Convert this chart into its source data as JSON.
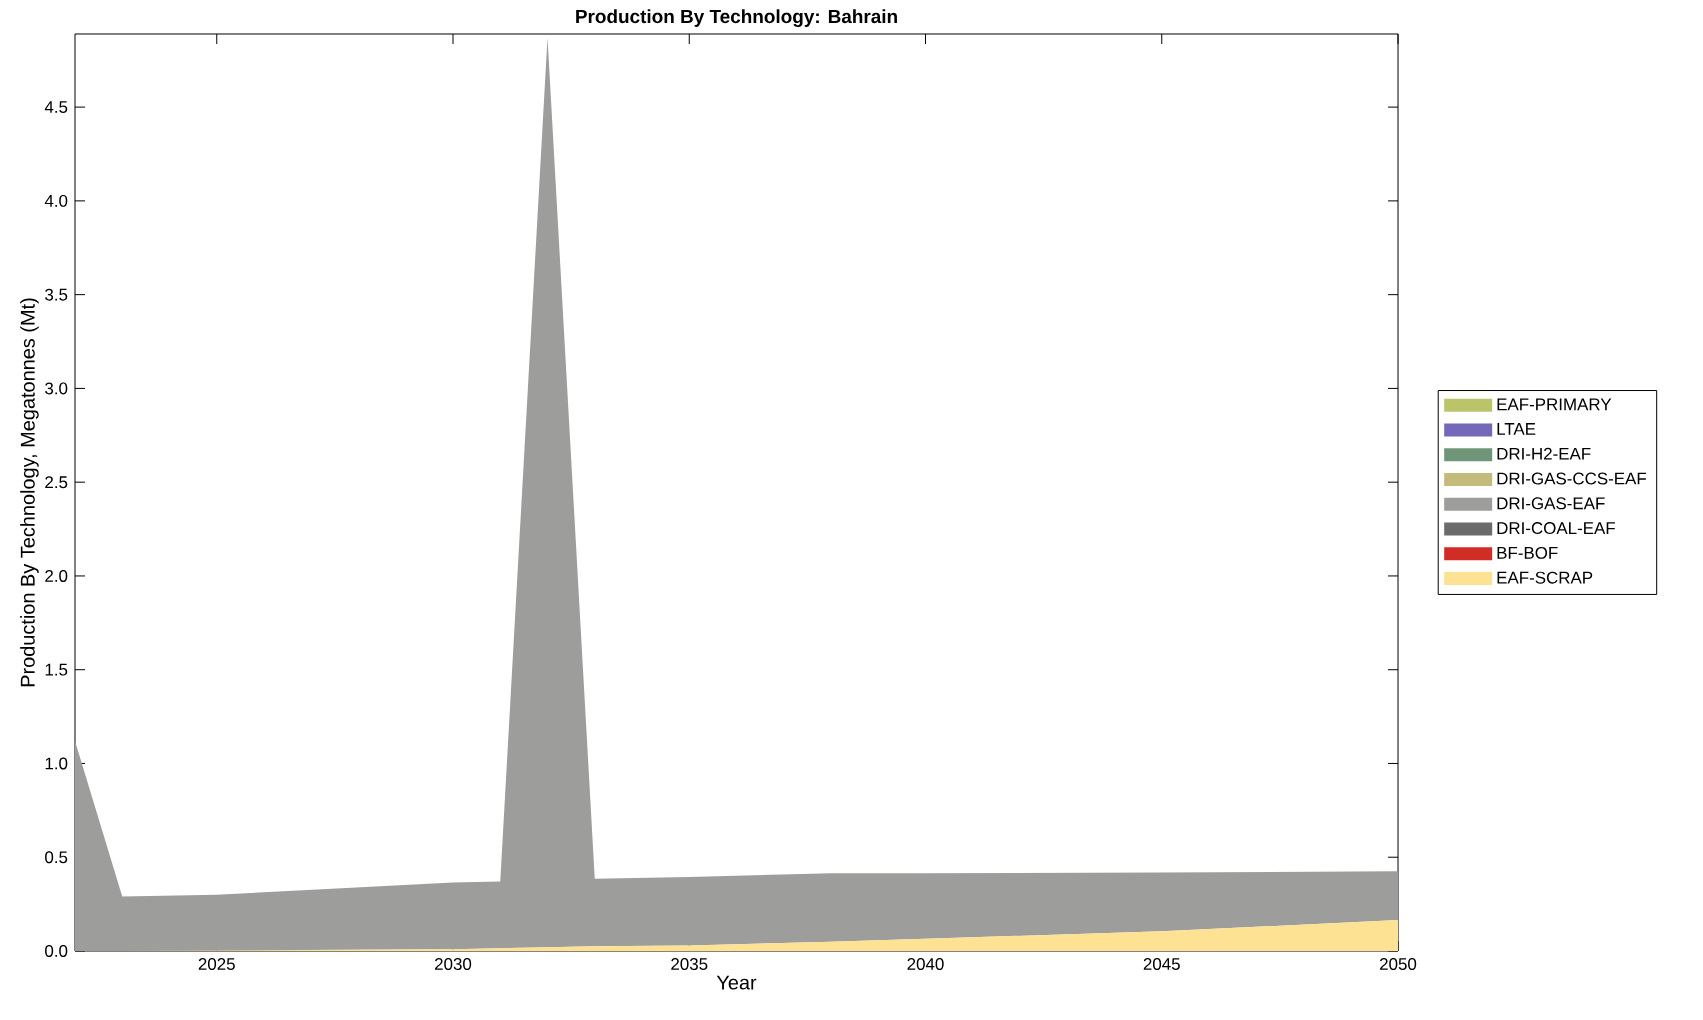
{
  "chart_data": {
    "type": "area",
    "stacked": true,
    "title": "Production By Technology: Bahrain",
    "xlabel": "Year",
    "ylabel": "Production By Technology, Megatonnes (Mt)",
    "x": [
      2022,
      2023,
      2025,
      2030,
      2031,
      2032,
      2033,
      2035,
      2038,
      2040,
      2045,
      2050
    ],
    "series": [
      {
        "name": "EAF-SCRAP",
        "color": "#fde294",
        "values": [
          0,
          0,
          0.003,
          0.01,
          0.015,
          0.02,
          0.025,
          0.03,
          0.05,
          0.065,
          0.105,
          0.165
        ]
      },
      {
        "name": "BF-BOF",
        "color": "#d12d26",
        "values": [
          null,
          null,
          null,
          null,
          null,
          null,
          null,
          null,
          null,
          null,
          null,
          null
        ]
      },
      {
        "name": "DRI-COAL-EAF",
        "color": "#6b6b6b",
        "values": [
          null,
          null,
          null,
          null,
          null,
          null,
          null,
          null,
          null,
          null,
          null,
          null
        ]
      },
      {
        "name": "DRI-GAS-EAF",
        "color": "#9d9d9c",
        "values": [
          1.12,
          0.29,
          0.297,
          0.355,
          0.355,
          4.85,
          0.36,
          0.365,
          0.365,
          0.35,
          0.313,
          0.26
        ]
      },
      {
        "name": "DRI-GAS-CCS-EAF",
        "color": "#c4ba7c",
        "values": [
          null,
          null,
          null,
          null,
          null,
          null,
          null,
          null,
          null,
          null,
          null,
          null
        ]
      },
      {
        "name": "DRI-H2-EAF",
        "color": "#6f9679",
        "values": [
          null,
          null,
          null,
          null,
          null,
          null,
          null,
          null,
          null,
          null,
          null,
          null
        ]
      },
      {
        "name": "LTAE",
        "color": "#7469b8",
        "values": [
          null,
          null,
          null,
          null,
          null,
          null,
          null,
          null,
          null,
          null,
          null,
          null
        ]
      },
      {
        "name": "EAF-PRIMARY",
        "color": "#bcc46a",
        "values": [
          null,
          null,
          null,
          null,
          null,
          null,
          null,
          null,
          null,
          null,
          null,
          null
        ]
      }
    ],
    "xlim": [
      2022,
      2050
    ],
    "ylim": [
      0,
      4.89
    ],
    "xticks": [
      2025,
      2030,
      2035,
      2040,
      2045,
      2050
    ],
    "yticks": [
      {
        "value": 0,
        "label": "0.0"
      },
      {
        "value": 0.5,
        "label": "0.5"
      },
      {
        "value": 1,
        "label": "1.0"
      },
      {
        "value": 1.5,
        "label": "1.5"
      },
      {
        "value": 2,
        "label": "2.0"
      },
      {
        "value": 2.5,
        "label": "2.5"
      },
      {
        "value": 3,
        "label": "3.0"
      },
      {
        "value": 3.5,
        "label": "3.5"
      },
      {
        "value": 4,
        "label": "4.0"
      },
      {
        "value": 4.5,
        "label": "4.5"
      }
    ],
    "legend": "right",
    "grid": false
  }
}
